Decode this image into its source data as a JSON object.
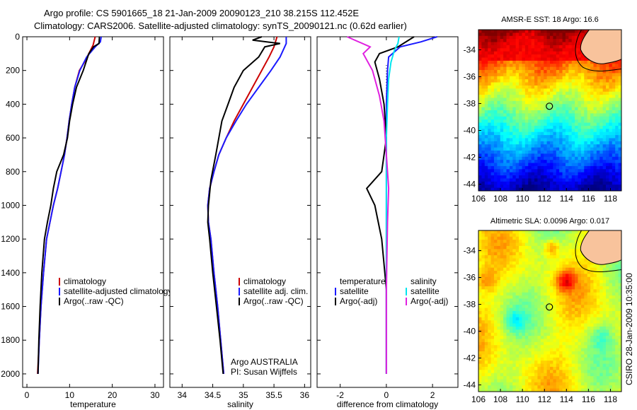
{
  "header": {
    "line1": "Argo profile: CS 5901665_18 21-Jan-2009 20090123_210 38.215S 112.452E",
    "line2": "Climatology: CARS2006. Satellite-adjusted climatology: synTS_20090121.nc (0.62d earlier)"
  },
  "side_label": "CSIRO 28-Jan-2009 10:35:00",
  "chart_data": [
    {
      "type": "line",
      "id": "temperature",
      "xlabel": "temperature",
      "ylabel": "",
      "xlim": [
        -1,
        32
      ],
      "ylim": [
        2080,
        0
      ],
      "xticks": [
        0,
        10,
        20,
        30
      ],
      "yticks": [
        0,
        200,
        400,
        600,
        800,
        1000,
        1200,
        1400,
        1600,
        1800,
        2000
      ],
      "legend_position": "lower-right",
      "series": [
        {
          "name": "climatology",
          "color": "#cc0000",
          "x": [
            16.0,
            15.5,
            14.5,
            13.5,
            12.3,
            11.2,
            10.5,
            9.9,
            9.4,
            8.8,
            8.0,
            7.2,
            6.2,
            5.4,
            4.6,
            3.9,
            3.3,
            2.9,
            2.5
          ],
          "y": [
            0,
            50,
            100,
            150,
            200,
            300,
            400,
            500,
            600,
            700,
            800,
            900,
            1000,
            1100,
            1200,
            1400,
            1600,
            1800,
            2000
          ]
        },
        {
          "name": "satellite-adjusted climatology",
          "color": "#1a1aff",
          "x": [
            17.4,
            17.2,
            16.0,
            14.0,
            12.4,
            11.2,
            10.5,
            9.9,
            9.4,
            8.8,
            8.0,
            7.2,
            6.2,
            5.4,
            4.6,
            3.9,
            3.3,
            2.9,
            2.6
          ],
          "y": [
            0,
            30,
            60,
            120,
            200,
            300,
            400,
            500,
            600,
            700,
            800,
            900,
            1000,
            1100,
            1200,
            1400,
            1600,
            1800,
            2000
          ]
        },
        {
          "name": "Argo(..raw -QC)",
          "color": "#000000",
          "x": [
            17.0,
            16.9,
            15.6,
            14.5,
            13.2,
            11.6,
            10.7,
            10.0,
            9.5,
            8.6,
            7.0,
            6.2,
            5.6,
            4.8,
            4.1,
            3.5,
            3.1,
            2.8,
            2.6
          ],
          "y": [
            0,
            40,
            60,
            100,
            200,
            300,
            400,
            500,
            600,
            700,
            800,
            900,
            1000,
            1100,
            1200,
            1400,
            1600,
            1800,
            2000
          ]
        }
      ]
    },
    {
      "type": "line",
      "id": "salinity",
      "xlabel": "salinity",
      "ylabel": "",
      "xlim": [
        33.8,
        36.1
      ],
      "ylim": [
        2080,
        0
      ],
      "xticks": [
        34,
        34.5,
        35,
        35.5,
        36
      ],
      "xtick_labels": [
        "34",
        "34.5",
        "35",
        "35.5",
        "36"
      ],
      "legend_position": "lower-right",
      "annotation": [
        "Argo AUSTRALIA",
        "PI: Susan Wijffels"
      ],
      "series": [
        {
          "name": "climatology",
          "color": "#cc0000",
          "x": [
            35.55,
            35.5,
            35.42,
            35.3,
            35.15,
            35.0,
            34.85,
            34.72,
            34.6,
            34.52,
            34.45,
            34.42,
            34.43,
            34.47,
            34.52,
            34.58,
            34.63,
            34.68
          ],
          "y": [
            0,
            60,
            120,
            200,
            300,
            400,
            500,
            600,
            700,
            800,
            900,
            1000,
            1100,
            1200,
            1400,
            1600,
            1800,
            2000
          ]
        },
        {
          "name": "satellite adj. clim.",
          "color": "#1a1aff",
          "x": [
            35.7,
            35.7,
            35.6,
            35.45,
            35.25,
            35.05,
            34.88,
            34.72,
            34.6,
            34.52,
            34.45,
            34.42,
            34.43,
            34.47,
            34.52,
            34.58,
            34.63,
            34.68
          ],
          "y": [
            0,
            40,
            120,
            200,
            300,
            400,
            500,
            600,
            700,
            800,
            900,
            1000,
            1100,
            1200,
            1400,
            1600,
            1800,
            2000
          ]
        },
        {
          "name": "Argo(..raw -QC)",
          "color": "#000000",
          "x": [
            35.3,
            35.15,
            35.6,
            35.35,
            35.25,
            35.0,
            34.85,
            34.75,
            34.65,
            34.55,
            34.47,
            34.43,
            34.42,
            34.45,
            34.5,
            34.56,
            34.62,
            34.67
          ],
          "y": [
            0,
            20,
            40,
            60,
            120,
            200,
            300,
            400,
            500,
            700,
            850,
            1000,
            1100,
            1200,
            1400,
            1600,
            1800,
            2000
          ]
        }
      ]
    },
    {
      "type": "line",
      "id": "difference",
      "xlabel": "difference from climatology",
      "ylabel": "",
      "xlim": [
        -3,
        3.1
      ],
      "ylim": [
        2080,
        0
      ],
      "xticks": [
        -2,
        0,
        2
      ],
      "legend_position": "lower-right",
      "legend_headers": [
        "temperature",
        "salinity"
      ],
      "series": [
        {
          "name": "satellite",
          "group": "temperature",
          "color": "#1a1aff",
          "x": [
            2.2,
            1.5,
            0.6,
            0.1,
            0.05,
            0.0,
            0.0,
            0.0,
            0.0,
            0.0,
            0.0,
            0.0
          ],
          "y": [
            0,
            30,
            60,
            120,
            200,
            400,
            600,
            800,
            1000,
            1400,
            1800,
            2000
          ]
        },
        {
          "name": "Argo(-adj)",
          "group": "temperature",
          "color": "#000000",
          "x": [
            1.2,
            0.5,
            -0.3,
            -0.5,
            -0.3,
            -0.1,
            0.0,
            -0.2,
            -0.85,
            -0.5,
            -0.2,
            0.0,
            0.0
          ],
          "y": [
            0,
            60,
            100,
            150,
            250,
            400,
            600,
            800,
            900,
            1000,
            1200,
            1500,
            2000
          ]
        },
        {
          "name": "satellite",
          "group": "salinity",
          "color": "#00e5ee",
          "x": [
            0.55,
            0.5,
            0.35,
            0.2,
            0.1,
            0.05,
            0.0,
            0.0,
            0.0,
            0.0
          ],
          "y": [
            0,
            40,
            80,
            150,
            250,
            400,
            600,
            1000,
            1500,
            2000
          ]
        },
        {
          "name": "Argo(-adj)",
          "group": "salinity",
          "color": "#e020e0",
          "x": [
            -1.7,
            -0.7,
            -1.0,
            -0.6,
            -0.3,
            -0.1,
            0.0,
            0.1,
            0.05,
            0.0,
            0.0
          ],
          "y": [
            0,
            60,
            100,
            200,
            350,
            500,
            700,
            900,
            1100,
            1500,
            2000
          ]
        }
      ],
      "zero_line": true
    },
    {
      "type": "heatmap",
      "id": "sst",
      "title": "AMSR-E SST: 18 Argo: 16.6",
      "xlim": [
        106,
        119
      ],
      "ylim": [
        -44.5,
        -32.5
      ],
      "xticks": [
        106,
        108,
        110,
        112,
        114,
        116,
        118
      ],
      "yticks": [
        -34,
        -36,
        -38,
        -40,
        -42,
        -44
      ],
      "colormap": "jet",
      "marker": {
        "lon": 112.45,
        "lat": -38.2
      },
      "land_color": "#f8c39c"
    },
    {
      "type": "heatmap",
      "id": "sla",
      "title": "Altimetric SLA: 0.0096 Argo: 0.017",
      "xlim": [
        106,
        119
      ],
      "ylim": [
        -44.5,
        -32.5
      ],
      "xticks": [
        106,
        108,
        110,
        112,
        114,
        116,
        118
      ],
      "yticks": [
        -34,
        -36,
        -38,
        -40,
        -42,
        -44
      ],
      "colormap": "jet",
      "marker": {
        "lon": 112.45,
        "lat": -38.2
      },
      "land_color": "#f8c39c"
    }
  ]
}
